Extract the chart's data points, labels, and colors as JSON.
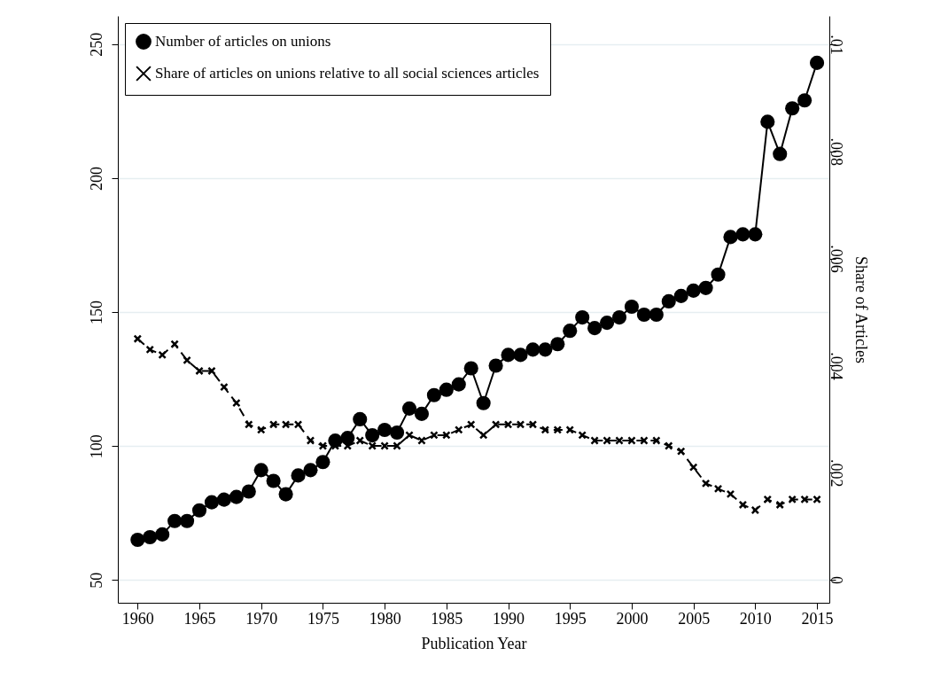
{
  "chart_data": {
    "type": "line",
    "xlabel": "Publication Year",
    "y2label": "Share of Articles",
    "x": [
      1960,
      1961,
      1962,
      1963,
      1964,
      1965,
      1966,
      1967,
      1968,
      1969,
      1970,
      1971,
      1972,
      1973,
      1974,
      1975,
      1976,
      1977,
      1978,
      1979,
      1980,
      1981,
      1982,
      1983,
      1984,
      1985,
      1986,
      1987,
      1988,
      1989,
      1990,
      1991,
      1992,
      1993,
      1994,
      1995,
      1996,
      1997,
      1998,
      1999,
      2000,
      2001,
      2002,
      2003,
      2004,
      2005,
      2006,
      2007,
      2008,
      2009,
      2010,
      2011,
      2012,
      2013,
      2014,
      2015
    ],
    "series": [
      {
        "name": "Number of articles on unions",
        "color": "#000000",
        "marker": "circle",
        "line_style": "solid",
        "values": [
          65,
          66,
          67,
          72,
          72,
          76,
          79,
          80,
          81,
          83,
          91,
          87,
          82,
          89,
          91,
          94,
          102,
          103,
          110,
          104,
          106,
          105,
          114,
          112,
          119,
          121,
          123,
          129,
          116,
          130,
          134,
          134,
          136,
          136,
          138,
          143,
          148,
          144,
          146,
          148,
          152,
          149,
          149,
          154,
          156,
          158,
          159,
          164,
          178,
          179,
          179,
          221,
          209,
          226,
          229,
          243
        ]
      },
      {
        "name": "Share of articles on unions relative to all social sciences articles",
        "color": "#000000",
        "marker": "cross",
        "line_style": "dashed",
        "axis": "y2",
        "values": [
          0.0045,
          0.0043,
          0.0042,
          0.0044,
          0.0041,
          0.0039,
          0.0039,
          0.0036,
          0.0033,
          0.0029,
          0.0028,
          0.0029,
          0.0029,
          0.0029,
          0.0026,
          0.0025,
          0.0025,
          0.0025,
          0.0026,
          0.0025,
          0.0025,
          0.0025,
          0.0027,
          0.0026,
          0.0027,
          0.0027,
          0.0028,
          0.0029,
          0.0027,
          0.0029,
          0.0029,
          0.0029,
          0.0029,
          0.0028,
          0.0028,
          0.0028,
          0.0027,
          0.0026,
          0.0026,
          0.0026,
          0.0026,
          0.0026,
          0.0026,
          0.0025,
          0.0024,
          0.0021,
          0.0018,
          0.0017,
          0.0016,
          0.0014,
          0.0013,
          0.0015,
          0.0014,
          0.0015,
          0.0015,
          0.0015
        ]
      }
    ],
    "xlim": [
      1958.4,
      2016
    ],
    "xticks": [
      1960,
      1965,
      1970,
      1975,
      1980,
      1985,
      1990,
      1995,
      2000,
      2005,
      2010,
      2015
    ],
    "ylim": [
      41.5,
      260.5
    ],
    "yticks": [
      50,
      100,
      150,
      200,
      250
    ],
    "y2lim": [
      -0.00043,
      0.01053
    ],
    "y2ticks": [
      {
        "value": 0,
        "label": "0"
      },
      {
        "value": 0.002,
        "label": ".002"
      },
      {
        "value": 0.004,
        "label": ".004"
      },
      {
        "value": 0.006,
        "label": ".006"
      },
      {
        "value": 0.008,
        "label": ".008"
      },
      {
        "value": 0.01,
        "label": ".01"
      }
    ],
    "grid": "y",
    "legend": "top left"
  }
}
